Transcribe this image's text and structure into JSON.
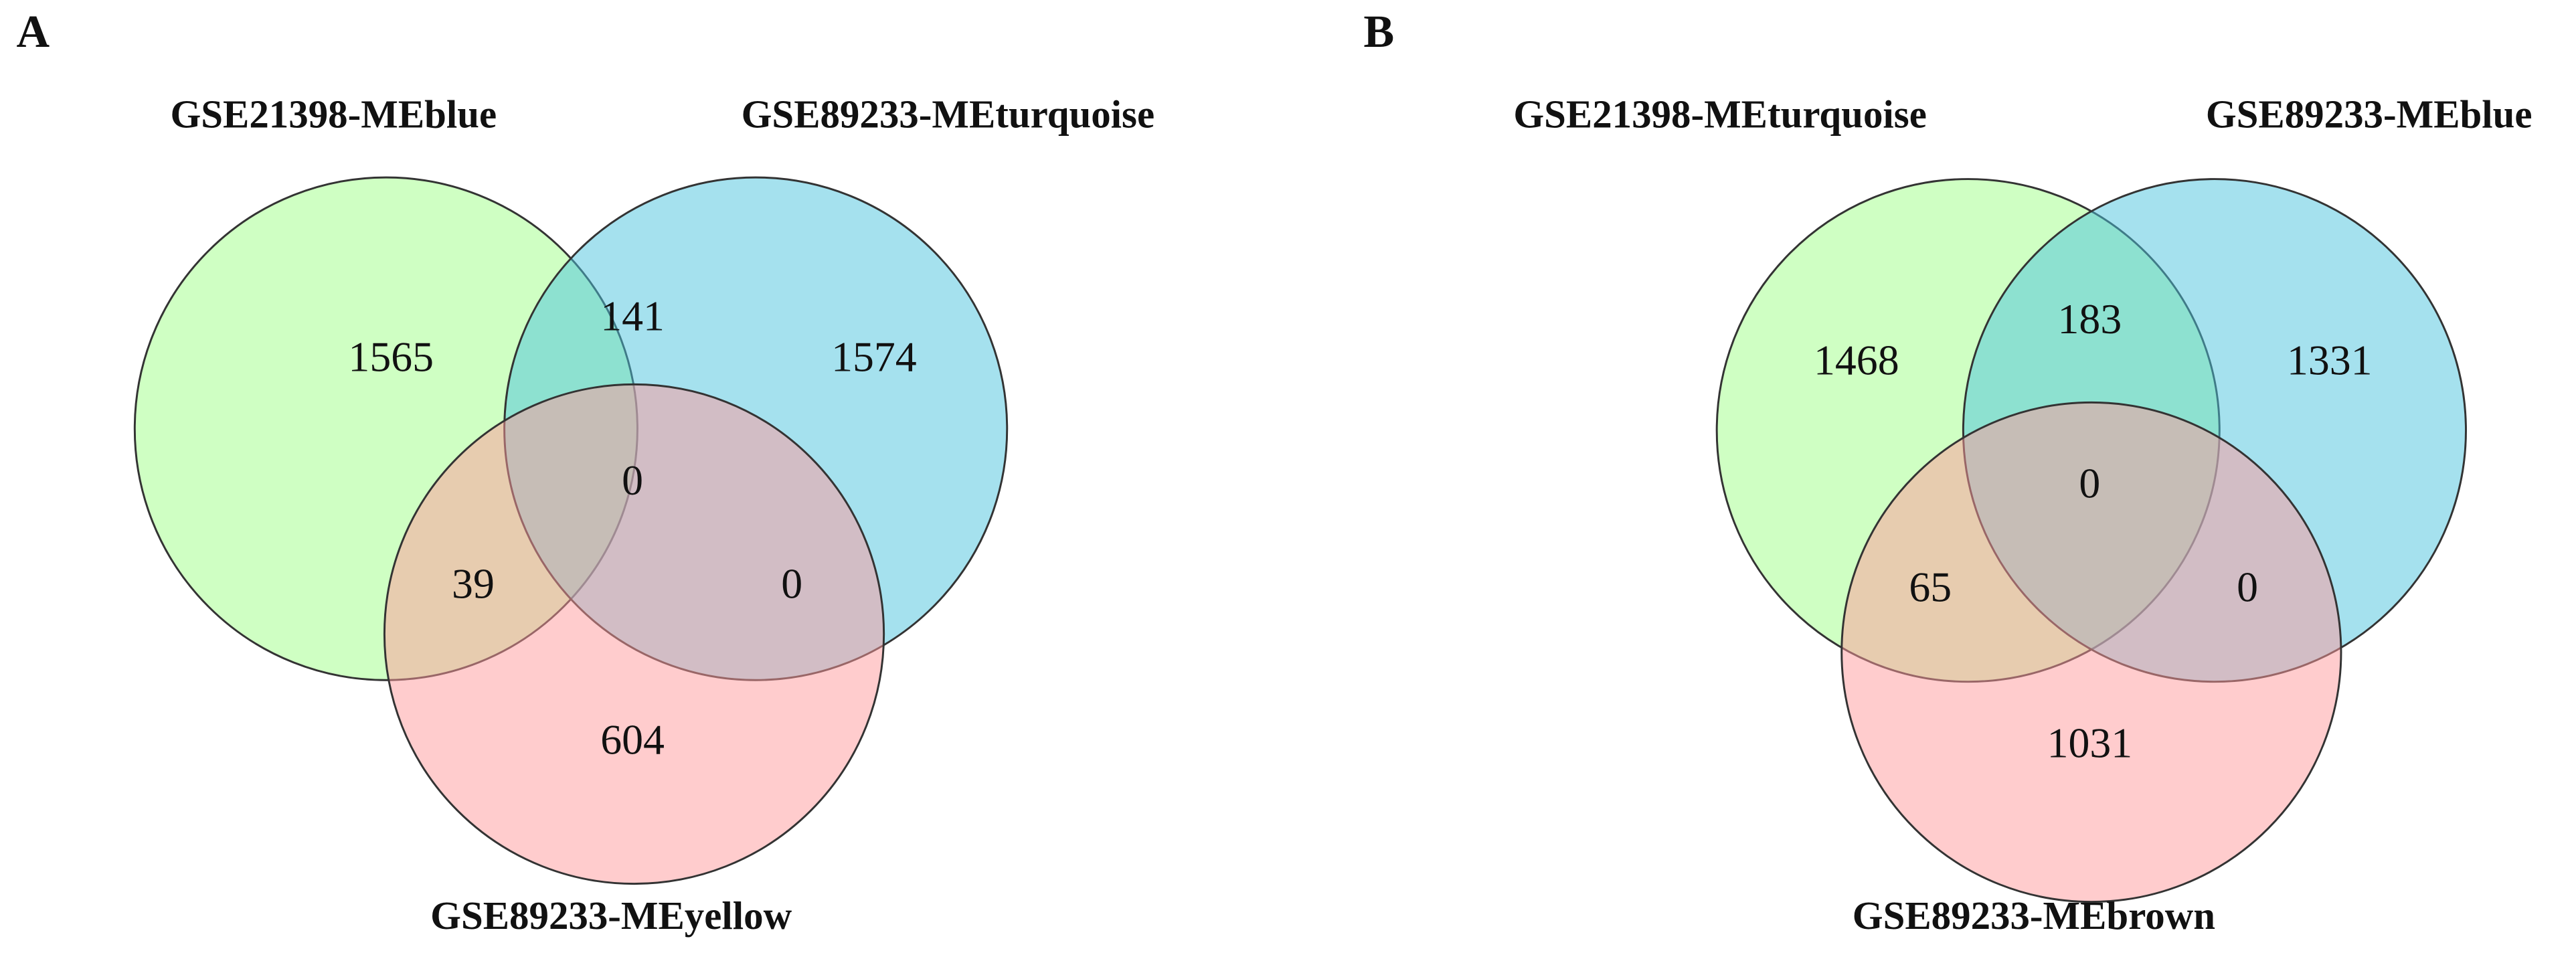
{
  "chart_data": [
    {
      "type": "venn",
      "panel_label": "A",
      "sets": [
        {
          "name": "GSE21398-MEblue",
          "color": "#a0ff88"
        },
        {
          "name": "GSE89233-MEturquoise",
          "color": "#4cc4dd"
        },
        {
          "name": "GSE89233-MEyellow",
          "color": "#ff999b"
        }
      ],
      "values": [
        1565,
        1574,
        604,
        141,
        39,
        0,
        0
      ]
    },
    {
      "type": "venn",
      "panel_label": "B",
      "sets": [
        {
          "name": "GSE21398-MEturquoise",
          "color": "#a0ff88"
        },
        {
          "name": "GSE89233-MEblue",
          "color": "#4cc4dd"
        },
        {
          "name": "GSE89233-MEbrown",
          "color": "#ff999b"
        }
      ],
      "values": [
        1468,
        1331,
        1031,
        183,
        65,
        0,
        0
      ]
    }
  ]
}
